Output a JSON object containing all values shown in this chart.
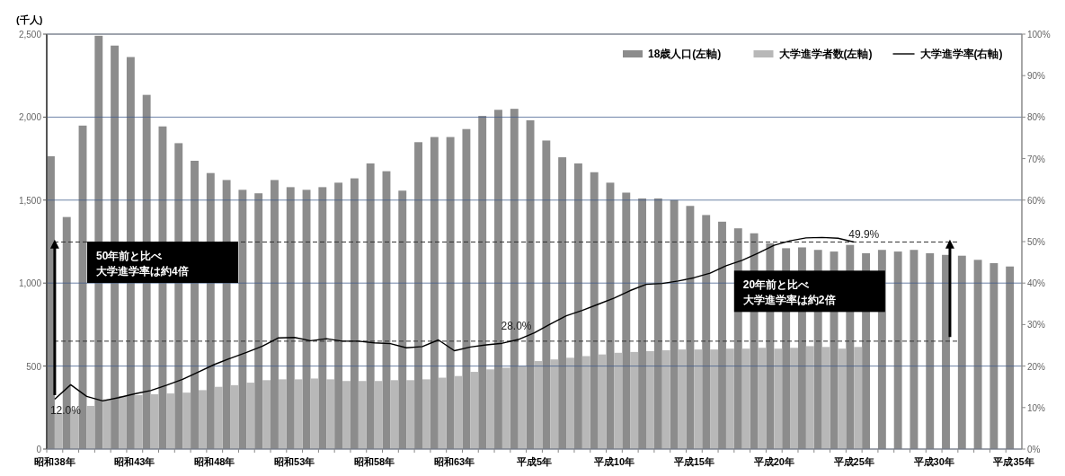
{
  "chart_data": {
    "type": "bar",
    "ylabel": "(千人)",
    "categories": [
      "昭和38年",
      null,
      null,
      null,
      null,
      "昭和43年",
      null,
      null,
      null,
      null,
      "昭和48年",
      null,
      null,
      null,
      null,
      "昭和53年",
      null,
      null,
      null,
      null,
      "昭和58年",
      null,
      null,
      null,
      null,
      "昭和63年",
      null,
      null,
      null,
      null,
      "平成5年",
      null,
      null,
      null,
      null,
      "平成10年",
      null,
      null,
      null,
      null,
      "平成15年",
      null,
      null,
      null,
      null,
      "平成20年",
      null,
      null,
      null,
      null,
      "平成25年",
      null,
      null,
      null,
      null,
      "平成30年",
      null,
      null,
      null,
      null,
      "平成35年"
    ],
    "series": [
      {
        "name": "18歳人口(左軸)",
        "color": "#8c8c8c",
        "values": [
          1764,
          1398,
          1949,
          2490,
          2431,
          2362,
          2134,
          1944,
          1843,
          1737,
          1663,
          1621,
          1562,
          1541,
          1621,
          1578,
          1562,
          1578,
          1605,
          1631,
          1721,
          1674,
          1557,
          1849,
          1880,
          1880,
          1928,
          2007,
          2044,
          2050,
          1981,
          1859,
          1758,
          1721,
          1668,
          1605,
          1545,
          1510,
          1510,
          1500,
          1465,
          1410,
          1370,
          1330,
          1300,
          1240,
          1210,
          1215,
          1200,
          1190,
          1230,
          1180,
          1200,
          1190,
          1200,
          1180,
          1170,
          1165,
          1140,
          1120,
          1100
        ]
      },
      {
        "name": "大学進学者数(左軸)",
        "color": "#b8b8b8",
        "values": [
          215,
          235,
          260,
          300,
          320,
          325,
          330,
          335,
          340,
          355,
          375,
          385,
          400,
          415,
          420,
          420,
          425,
          420,
          410,
          410,
          410,
          415,
          415,
          420,
          430,
          440,
          465,
          480,
          490,
          500,
          530,
          540,
          550,
          560,
          570,
          580,
          585,
          590,
          595,
          600,
          600,
          600,
          605,
          605,
          610,
          605,
          610,
          620,
          615,
          605,
          615,
          null,
          null,
          null,
          null,
          null,
          null,
          null,
          null,
          null,
          null
        ]
      },
      {
        "name": "大学進学率(右軸)",
        "type": "line",
        "axis": "y2",
        "color": "#000000",
        "values": [
          12.0,
          15.5,
          12.7,
          11.6,
          12.4,
          13.3,
          14.1,
          15.4,
          16.8,
          18.6,
          20.4,
          21.9,
          23.3,
          24.8,
          26.8,
          26.9,
          26.1,
          26.6,
          26.0,
          26.0,
          25.6,
          25.4,
          24.4,
          24.7,
          26.3,
          23.7,
          24.6,
          25.1,
          25.5,
          26.4,
          28.0,
          30.1,
          32.1,
          33.4,
          34.9,
          36.4,
          38.2,
          39.7,
          39.9,
          40.5,
          41.3,
          42.4,
          44.2,
          45.5,
          47.2,
          49.1,
          50.2,
          50.9,
          51.0,
          50.8,
          49.9,
          null,
          null,
          null,
          null,
          null,
          null,
          null,
          null,
          null,
          null
        ]
      }
    ],
    "ylim": [
      0,
      2500
    ],
    "yticks": [
      0,
      500,
      {
        "value": 1000,
        "label": "1,000"
      },
      {
        "value": 1500,
        "label": "1,500"
      },
      {
        "value": 2000,
        "label": "2,000"
      },
      {
        "value": 2500,
        "label": "2,500"
      }
    ],
    "y2lim": [
      0,
      100
    ],
    "y2ticks": [
      {
        "value": 0,
        "label": "0%"
      },
      {
        "value": 10,
        "label": "10%"
      },
      {
        "value": 20,
        "label": "20%"
      },
      {
        "value": 30,
        "label": "30%"
      },
      {
        "value": 40,
        "label": "40%"
      },
      {
        "value": 50,
        "label": "50%"
      },
      {
        "value": 60,
        "label": "60%"
      },
      {
        "value": 70,
        "label": "70%"
      },
      {
        "value": 80,
        "label": "80%"
      },
      {
        "value": 90,
        "label": "90%"
      },
      {
        "value": 100,
        "label": "100%"
      }
    ],
    "grid": "y",
    "legend": "top right",
    "marker": "none",
    "line_style": "solid",
    "ref_lines": [
      {
        "axis": "y2",
        "value": 49.9,
        "line_style": "dashed",
        "color": "#333333"
      },
      {
        "axis": "y2",
        "value": 26,
        "line_style": "dashed",
        "color": "#333333"
      }
    ],
    "annotations": [
      {
        "text": "12.0%",
        "x": "昭和38年",
        "y": 12.0
      },
      "28.0%",
      "49.9%",
      "50年前と比べ",
      "大学進学率は約4倍",
      "20年前と比べ",
      "大学進学率は約2倍"
    ]
  }
}
